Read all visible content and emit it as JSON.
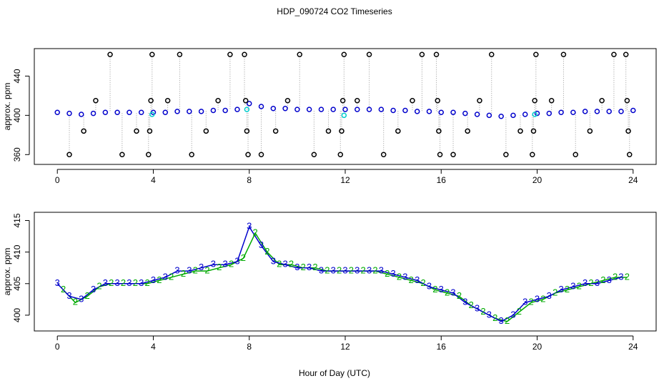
{
  "chart_data": [
    {
      "type": "scatter",
      "title": "HDP_090724  CO2 Timeseries",
      "y_label": "approx. ppm",
      "xlim": [
        -0.96,
        24.96
      ],
      "xticks": [
        0,
        4,
        8,
        12,
        16,
        20,
        24
      ],
      "ylim": [
        350,
        468
      ],
      "yticks": [
        360,
        400,
        440
      ],
      "connectors": true,
      "series": [
        {
          "color": "#0000cc",
          "marker": "circle",
          "x": [
            0,
            0.5,
            1,
            1.5,
            2,
            2.5,
            3,
            3.5,
            4,
            4.5,
            5,
            5.5,
            6,
            6.5,
            7,
            7.5,
            8,
            8.5,
            9,
            9.5,
            10,
            10.5,
            11,
            11.5,
            12,
            12.5,
            13,
            13.5,
            14,
            14.5,
            15,
            15.5,
            16,
            16.5,
            17,
            17.5,
            18,
            18.5,
            19,
            19.5,
            20,
            20.5,
            21,
            21.5,
            22,
            22.5,
            23,
            23.5,
            24
          ],
          "values": [
            403,
            402,
            401,
            402,
            403,
            403,
            403,
            403,
            403,
            403,
            404,
            404,
            404,
            405,
            405,
            406,
            412,
            409,
            407,
            407,
            406,
            406,
            406,
            406,
            406,
            406,
            406,
            406,
            405,
            405,
            404,
            404,
            403,
            403,
            402,
            401,
            400,
            399,
            400,
            401,
            402,
            402,
            403,
            403,
            404,
            404,
            404,
            404,
            405
          ]
        },
        {
          "color": "#00cccc",
          "marker": "circle",
          "x": [
            3.95,
            7.9,
            11.95,
            19.9
          ],
          "values": [
            401,
            406,
            400,
            401
          ]
        },
        {
          "color": "#000000",
          "marker": "circle",
          "outlier": true,
          "x": [
            0.5,
            1.1,
            1.6,
            2.2,
            2.7,
            3.3,
            3.8,
            3.85,
            3.9,
            3.95,
            4.6,
            5.1,
            5.6,
            6.2,
            6.7,
            7.2,
            7.8,
            7.85,
            7.9,
            7.95,
            8.5,
            9.1,
            9.6,
            10.1,
            10.7,
            11.3,
            11.8,
            11.85,
            11.9,
            11.95,
            12.5,
            13.0,
            13.6,
            14.2,
            14.8,
            15.2,
            15.8,
            15.85,
            15.9,
            15.95,
            16.5,
            17.1,
            17.6,
            18.1,
            18.7,
            19.3,
            19.8,
            19.85,
            19.9,
            19.95,
            20.6,
            21.1,
            21.6,
            22.2,
            22.7,
            23.2,
            23.7,
            23.75,
            23.8,
            23.85
          ],
          "values": [
            360,
            384,
            415,
            462,
            360,
            384,
            360,
            384,
            415,
            462,
            415,
            462,
            360,
            384,
            415,
            462,
            462,
            415,
            384,
            360,
            360,
            384,
            415,
            462,
            360,
            384,
            360,
            384,
            415,
            462,
            415,
            462,
            360,
            384,
            415,
            462,
            462,
            415,
            384,
            360,
            360,
            384,
            415,
            462,
            360,
            384,
            360,
            384,
            415,
            462,
            415,
            462,
            360,
            384,
            415,
            462,
            462,
            415,
            384,
            360
          ]
        }
      ]
    },
    {
      "type": "line",
      "y_label": "approx. ppm",
      "x_label": "Hour of Day (UTC)",
      "xlim": [
        -0.96,
        24.96
      ],
      "xticks": [
        0,
        4,
        8,
        12,
        16,
        20,
        24
      ],
      "ylim": [
        397.5,
        416.3
      ],
      "yticks": [
        400,
        405,
        410,
        415
      ],
      "series": [
        {
          "color": "#00aa00",
          "marker": "2",
          "x": [
            0.25,
            0.75,
            1.25,
            1.75,
            2.25,
            2.75,
            3.25,
            3.75,
            4.25,
            4.75,
            5.25,
            5.75,
            6.25,
            6.75,
            7.25,
            7.75,
            8.25,
            8.75,
            9.25,
            9.75,
            10.25,
            10.75,
            11.25,
            11.75,
            12.25,
            12.75,
            13.25,
            13.75,
            14.25,
            14.75,
            15.25,
            15.75,
            16.25,
            16.75,
            17.25,
            17.75,
            18.25,
            18.75,
            19.25,
            19.75,
            20.25,
            20.75,
            21.25,
            21.75,
            22.25,
            22.75,
            23.25,
            23.75
          ],
          "values": [
            404,
            402,
            403,
            404.5,
            405,
            405,
            405,
            405,
            405.5,
            406,
            406.5,
            407,
            407,
            407.5,
            408,
            409,
            413,
            410,
            408,
            408,
            407.5,
            407.5,
            407,
            407,
            407,
            407,
            407,
            406.5,
            406,
            405.5,
            405,
            404,
            403.5,
            403,
            401.5,
            400.5,
            399.5,
            399,
            400.5,
            402,
            402.5,
            403.5,
            404,
            404.5,
            405,
            405.5,
            406,
            406
          ]
        },
        {
          "color": "#0000cc",
          "marker": "3",
          "x": [
            0,
            0.5,
            1,
            1.5,
            2,
            2.5,
            3,
            3.5,
            4,
            4.5,
            5,
            5.5,
            6,
            6.5,
            7,
            7.5,
            8,
            8.5,
            9,
            9.5,
            10,
            10.5,
            11,
            11.5,
            12,
            12.5,
            13,
            13.5,
            14,
            14.5,
            15,
            15.5,
            16,
            16.5,
            17,
            17.5,
            18,
            18.5,
            19,
            19.5,
            20,
            20.5,
            21,
            21.5,
            22,
            22.5,
            23,
            23.5
          ],
          "values": [
            405,
            403,
            402.5,
            404,
            405,
            405,
            405,
            405,
            405.5,
            406,
            407,
            407,
            407.5,
            408,
            408,
            408.5,
            414,
            411,
            408.5,
            408,
            407.5,
            407.5,
            407,
            407,
            407,
            407,
            407,
            407,
            406.5,
            406,
            405.5,
            404.5,
            404,
            403.5,
            402,
            401,
            400,
            399,
            400,
            402,
            402.5,
            403,
            404,
            404.5,
            405,
            405,
            405.5,
            406
          ]
        }
      ]
    }
  ]
}
